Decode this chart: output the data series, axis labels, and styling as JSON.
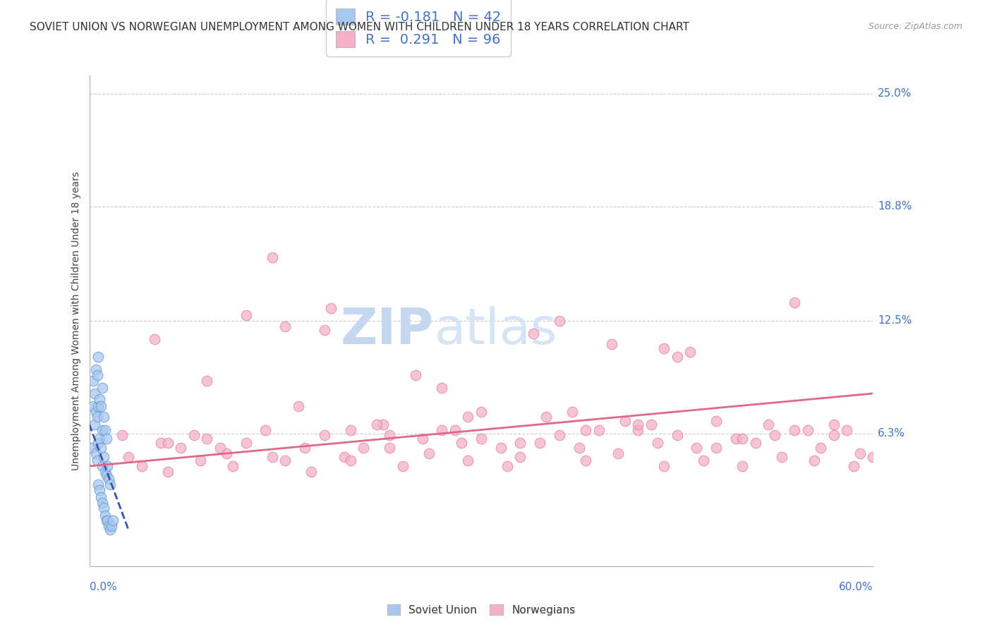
{
  "title": "SOVIET UNION VS NORWEGIAN UNEMPLOYMENT AMONG WOMEN WITH CHILDREN UNDER 18 YEARS CORRELATION CHART",
  "source": "Source: ZipAtlas.com",
  "ylabel": "Unemployment Among Women with Children Under 18 years",
  "xlim": [
    0.0,
    60.0
  ],
  "ylim": [
    -1.0,
    26.0
  ],
  "ytick_vals": [
    25.0,
    18.8,
    12.5,
    6.3
  ],
  "background_color": "#ffffff",
  "watermark_zip": "ZIP",
  "watermark_atlas": "atlas",
  "watermark_color": "#c8d8ee",
  "legend_R_soviet": "-0.181",
  "legend_N_soviet": "42",
  "legend_R_norw": "0.291",
  "legend_N_norw": "96",
  "soviet_color": "#a8c8f0",
  "soviet_edge_color": "#6699cc",
  "soviet_line_color": "#3355aa",
  "norw_color": "#f5b0c8",
  "norw_edge_color": "#e080a0",
  "norw_line_color": "#e06888",
  "soviet_x": [
    0.2,
    0.3,
    0.3,
    0.4,
    0.4,
    0.5,
    0.5,
    0.5,
    0.6,
    0.6,
    0.6,
    0.7,
    0.7,
    0.7,
    0.7,
    0.8,
    0.8,
    0.8,
    0.9,
    0.9,
    0.9,
    1.0,
    1.0,
    1.0,
    1.0,
    1.1,
    1.1,
    1.1,
    1.2,
    1.2,
    1.2,
    1.3,
    1.3,
    1.3,
    1.4,
    1.4,
    1.5,
    1.5,
    1.6,
    1.6,
    1.7,
    1.8
  ],
  "soviet_y": [
    5.5,
    7.8,
    9.2,
    6.8,
    8.5,
    5.2,
    7.5,
    9.8,
    4.8,
    7.2,
    9.5,
    3.5,
    5.8,
    7.8,
    10.5,
    3.2,
    6.0,
    8.2,
    2.8,
    5.5,
    7.8,
    2.5,
    4.5,
    6.5,
    8.8,
    2.2,
    5.0,
    7.2,
    1.8,
    4.2,
    6.5,
    1.5,
    4.0,
    6.0,
    1.5,
    4.5,
    1.2,
    3.8,
    1.0,
    3.5,
    1.2,
    1.5
  ],
  "norw_x": [
    2.5,
    3.0,
    4.0,
    5.5,
    6.0,
    7.0,
    8.5,
    9.0,
    10.5,
    11.0,
    12.0,
    13.5,
    14.0,
    15.0,
    16.5,
    17.0,
    18.0,
    19.5,
    20.0,
    21.0,
    22.5,
    23.0,
    24.0,
    25.5,
    26.0,
    27.0,
    28.5,
    29.0,
    30.0,
    31.5,
    32.0,
    33.0,
    34.5,
    35.0,
    36.0,
    37.5,
    38.0,
    39.0,
    40.5,
    41.0,
    42.0,
    43.5,
    44.0,
    45.0,
    46.5,
    47.0,
    48.0,
    49.5,
    50.0,
    51.0,
    52.5,
    53.0,
    54.0,
    55.5,
    56.0,
    57.0,
    58.5,
    59.0,
    5.0,
    18.0,
    34.0,
    9.0,
    27.0,
    45.0,
    54.0,
    36.0,
    18.5,
    30.0,
    48.0,
    22.0,
    40.0,
    58.0,
    12.0,
    25.0,
    15.0,
    42.0,
    57.0,
    33.0,
    20.0,
    10.0,
    50.0,
    6.0,
    44.0,
    28.0,
    16.0,
    37.0,
    52.0,
    8.0,
    60.0,
    46.0,
    23.0,
    38.0,
    14.0,
    29.0,
    55.0,
    43.0
  ],
  "norw_y": [
    6.2,
    5.0,
    4.5,
    5.8,
    4.2,
    5.5,
    4.8,
    6.0,
    5.2,
    4.5,
    5.8,
    6.5,
    5.0,
    4.8,
    5.5,
    4.2,
    6.2,
    5.0,
    4.8,
    5.5,
    6.8,
    5.5,
    4.5,
    6.0,
    5.2,
    6.5,
    5.8,
    4.8,
    6.0,
    5.5,
    4.5,
    5.0,
    5.8,
    7.2,
    6.2,
    5.5,
    4.8,
    6.5,
    5.2,
    7.0,
    6.5,
    5.8,
    4.5,
    6.2,
    5.5,
    4.8,
    5.5,
    6.0,
    4.5,
    5.8,
    6.2,
    5.0,
    6.5,
    4.8,
    5.5,
    6.8,
    4.5,
    5.2,
    11.5,
    12.0,
    11.8,
    9.2,
    8.8,
    10.5,
    13.5,
    12.5,
    13.2,
    7.5,
    7.0,
    6.8,
    11.2,
    6.5,
    12.8,
    9.5,
    12.2,
    6.8,
    6.2,
    5.8,
    6.5,
    5.5,
    6.0,
    5.8,
    11.0,
    6.5,
    7.8,
    7.5,
    6.8,
    6.2,
    5.0,
    10.8,
    6.2,
    6.5,
    16.0,
    7.2,
    6.5,
    6.8
  ],
  "grid_color": "#cccccc",
  "tick_label_color_blue": "#4472c4",
  "title_color": "#333333",
  "label_color": "#444444"
}
